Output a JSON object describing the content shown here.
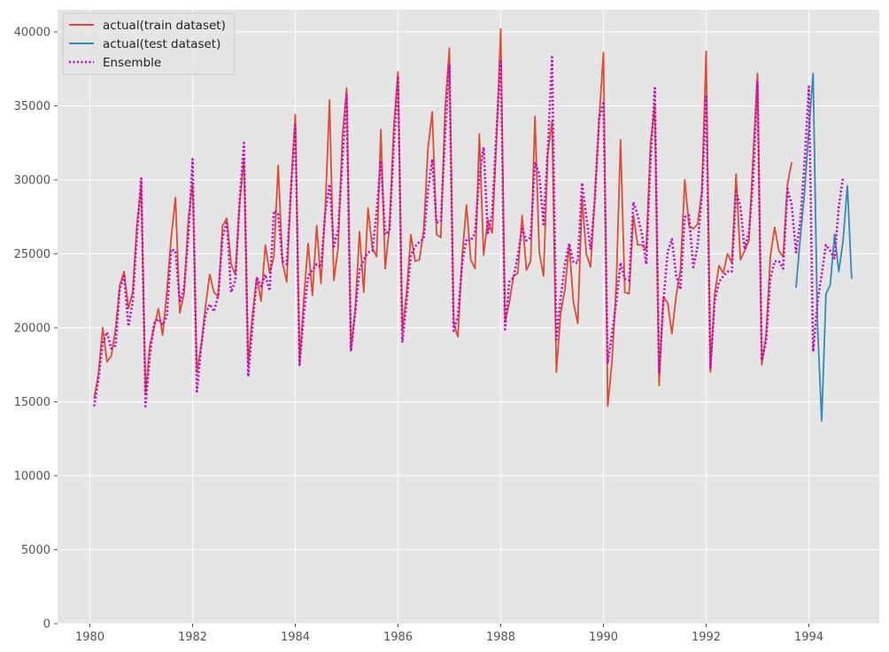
{
  "chart_data": {
    "type": "line",
    "title": "",
    "xlabel": "",
    "ylabel": "",
    "xlim": [
      1979.37,
      1995.37
    ],
    "ylim": [
      0,
      41500
    ],
    "x_ticks": [
      1980,
      1982,
      1984,
      1986,
      1988,
      1990,
      1992,
      1994
    ],
    "y_ticks": [
      0,
      5000,
      10000,
      15000,
      20000,
      25000,
      30000,
      35000,
      40000
    ],
    "grid": true,
    "legend_position": "top-left",
    "x_start": 1980.083,
    "x_step": 0.08333,
    "series": [
      {
        "name": "actual(train dataset)",
        "color": "#E24A33",
        "style": "solid",
        "start_index": 0,
        "values": [
          15200,
          16900,
          20000,
          17700,
          18100,
          19900,
          22900,
          23800,
          21300,
          22400,
          27000,
          29700,
          15500,
          18800,
          20000,
          21300,
          19500,
          22500,
          26100,
          28800,
          21000,
          22300,
          27300,
          29800,
          17000,
          18800,
          21400,
          23600,
          22400,
          22100,
          26900,
          27400,
          24300,
          23600,
          28400,
          31400,
          17500,
          20900,
          23400,
          21800,
          25600,
          23700,
          24800,
          31000,
          24400,
          23100,
          29600,
          34400,
          17600,
          22000,
          25700,
          22200,
          26900,
          23000,
          28000,
          35400,
          23200,
          25400,
          32900,
          36200,
          18500,
          21200,
          26500,
          22400,
          28100,
          25400,
          24800,
          33400,
          24000,
          26800,
          33500,
          37300,
          19800,
          22300,
          26300,
          24500,
          24600,
          26600,
          32100,
          34600,
          26300,
          26100,
          34800,
          38900,
          20300,
          19400,
          24900,
          28300,
          24600,
          24000,
          33100,
          24900,
          27300,
          26400,
          32600,
          40200,
          20400,
          21700,
          23500,
          23700,
          27600,
          23900,
          24500,
          34300,
          25100,
          23500,
          31800,
          34000,
          17000,
          21000,
          22600,
          25600,
          21700,
          20300,
          28800,
          25000,
          24100,
          28900,
          34100,
          38600,
          14700,
          17700,
          22900,
          32700,
          22400,
          22300,
          27600,
          25600,
          25600,
          25300,
          32500,
          35000,
          16100,
          22100,
          21700,
          19600,
          22200,
          23900,
          30000,
          26900,
          26700,
          27000,
          29200,
          38700,
          17000,
          22300,
          24200,
          23700,
          25000,
          24400,
          30400,
          24600,
          25200,
          25900,
          31700,
          37200,
          17500,
          19500,
          24800,
          26800,
          25200,
          24800,
          29700,
          31200
        ]
      },
      {
        "name": "actual(test dataset)",
        "color": "#348ABD",
        "style": "solid",
        "start_index": 164,
        "values": [
          22700,
          26100,
          29200,
          33400,
          37200,
          20300,
          13700,
          22300,
          22900,
          26300,
          23800,
          25900,
          29600,
          23300
        ]
      },
      {
        "name": "Ensemble",
        "color": "#CC00CC",
        "style": "dotted",
        "start_index": 0,
        "values": [
          14700,
          16500,
          19000,
          19700,
          18600,
          18800,
          22700,
          23500,
          20100,
          21700,
          26300,
          30100,
          14700,
          18100,
          20300,
          20600,
          20200,
          20800,
          25300,
          25200,
          21700,
          22700,
          26100,
          31400,
          15700,
          18700,
          20900,
          21600,
          21100,
          22200,
          26100,
          27200,
          22400,
          23200,
          28700,
          32500,
          16700,
          20100,
          23400,
          22800,
          23600,
          22500,
          27900,
          27700,
          24500,
          24300,
          29300,
          33700,
          17500,
          20900,
          23500,
          23900,
          24300,
          24100,
          27800,
          29700,
          25500,
          26600,
          31300,
          35700,
          18400,
          21100,
          23900,
          24600,
          25100,
          25200,
          27800,
          31300,
          26300,
          26600,
          32200,
          37000,
          19000,
          21700,
          24900,
          25500,
          25800,
          26000,
          29300,
          31400,
          27100,
          27200,
          33000,
          37800,
          19800,
          20800,
          24400,
          26000,
          25900,
          26400,
          30300,
          32200,
          26400,
          27700,
          33200,
          38100,
          19900,
          23100,
          23400,
          24900,
          26700,
          25900,
          26100,
          31200,
          30400,
          27000,
          32100,
          38300,
          19200,
          22000,
          24300,
          25700,
          24400,
          24400,
          29800,
          27500,
          25300,
          28700,
          34100,
          35300,
          17600,
          19600,
          21700,
          24400,
          23300,
          23200,
          28500,
          27600,
          26300,
          24300,
          31200,
          36200,
          17000,
          21700,
          25100,
          26000,
          23500,
          22600,
          27500,
          27600,
          24100,
          25500,
          29000,
          35600,
          17300,
          21800,
          23100,
          23500,
          23800,
          23800,
          29200,
          28200,
          25300,
          26500,
          30000,
          36600,
          17800,
          19100,
          23300,
          24500,
          24500,
          24000,
          29400,
          28300,
          25100,
          27200,
          31200,
          36300,
          18400,
          21700,
          23600,
          25600,
          25200,
          24700,
          28200,
          30200
        ]
      }
    ]
  }
}
